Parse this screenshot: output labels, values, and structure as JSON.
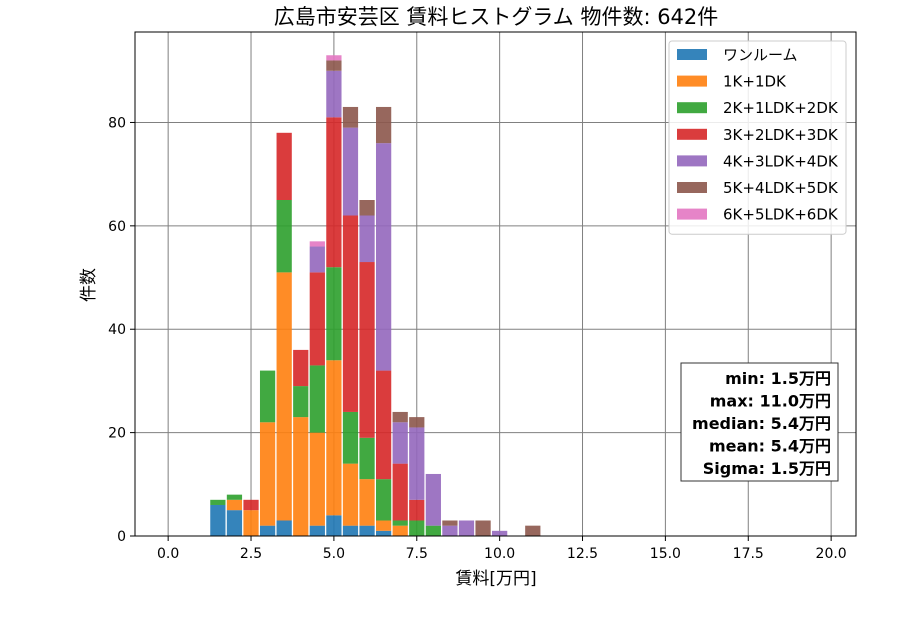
{
  "chart_data": {
    "type": "bar",
    "stacked": true,
    "title": "広島市安芸区 賃料ヒストグラム 物件数: 642件",
    "xlabel": "賃料[万円]",
    "ylabel": "件数",
    "xlim": [
      -1.0,
      20.75
    ],
    "ylim": [
      0,
      97.5
    ],
    "xticks": [
      0.0,
      2.5,
      5.0,
      7.5,
      10.0,
      12.5,
      15.0,
      17.5,
      20.0
    ],
    "xtick_labels": [
      "0.0",
      "2.5",
      "5.0",
      "7.5",
      "10.0",
      "12.5",
      "15.0",
      "17.5",
      "20.0"
    ],
    "yticks": [
      0,
      20,
      40,
      60,
      80
    ],
    "ytick_labels": [
      "0",
      "20",
      "40",
      "60",
      "80"
    ],
    "grid": true,
    "legend_position": "top-right",
    "bin_width": 0.5,
    "bins_x": [
      1.5,
      2.0,
      2.5,
      3.0,
      3.5,
      4.0,
      4.5,
      5.0,
      5.5,
      6.0,
      6.5,
      7.0,
      7.5,
      8.0,
      8.5,
      9.0,
      9.5,
      10.0,
      10.5,
      11.0
    ],
    "series": [
      {
        "name": "ワンルーム",
        "color": "#1f77b4",
        "values": [
          6,
          5,
          0,
          2,
          3,
          0,
          2,
          4,
          2,
          2,
          1,
          0,
          0,
          0,
          0,
          0,
          0,
          0,
          0,
          0
        ]
      },
      {
        "name": "1K+1DK",
        "color": "#ff7f0e",
        "values": [
          0,
          2,
          5,
          20,
          48,
          23,
          18,
          30,
          12,
          9,
          2,
          2,
          0,
          0,
          0,
          0,
          0,
          0,
          0,
          0
        ]
      },
      {
        "name": "2K+1LDK+2DK",
        "color": "#2ca02c",
        "values": [
          1,
          1,
          0,
          10,
          14,
          6,
          13,
          18,
          10,
          8,
          8,
          1,
          3,
          2,
          0,
          0,
          0,
          0,
          0,
          0
        ]
      },
      {
        "name": "3K+2LDK+3DK",
        "color": "#d62728",
        "values": [
          0,
          0,
          2,
          0,
          13,
          7,
          18,
          29,
          38,
          34,
          21,
          11,
          4,
          0,
          0,
          0,
          0,
          0,
          0,
          0
        ]
      },
      {
        "name": "4K+3LDK+4DK",
        "color": "#9467bd",
        "values": [
          0,
          0,
          0,
          0,
          0,
          0,
          5,
          9,
          17,
          9,
          44,
          8,
          14,
          10,
          2,
          3,
          0,
          1,
          0,
          0
        ]
      },
      {
        "name": "5K+4LDK+5DK",
        "color": "#8c564b",
        "values": [
          0,
          0,
          0,
          0,
          0,
          0,
          0,
          2,
          4,
          3,
          7,
          2,
          2,
          0,
          1,
          0,
          3,
          0,
          0,
          2
        ]
      },
      {
        "name": "6K+5LDK+6DK",
        "color": "#e377c2",
        "values": [
          0,
          0,
          0,
          0,
          0,
          0,
          1,
          1,
          0,
          0,
          0,
          0,
          0,
          0,
          0,
          0,
          0,
          0,
          0,
          0
        ]
      }
    ],
    "stats": [
      "min: 1.5万円",
      "max: 11.0万円",
      "median: 5.4万円",
      "mean: 5.4万円",
      "Sigma: 1.5万円"
    ]
  }
}
